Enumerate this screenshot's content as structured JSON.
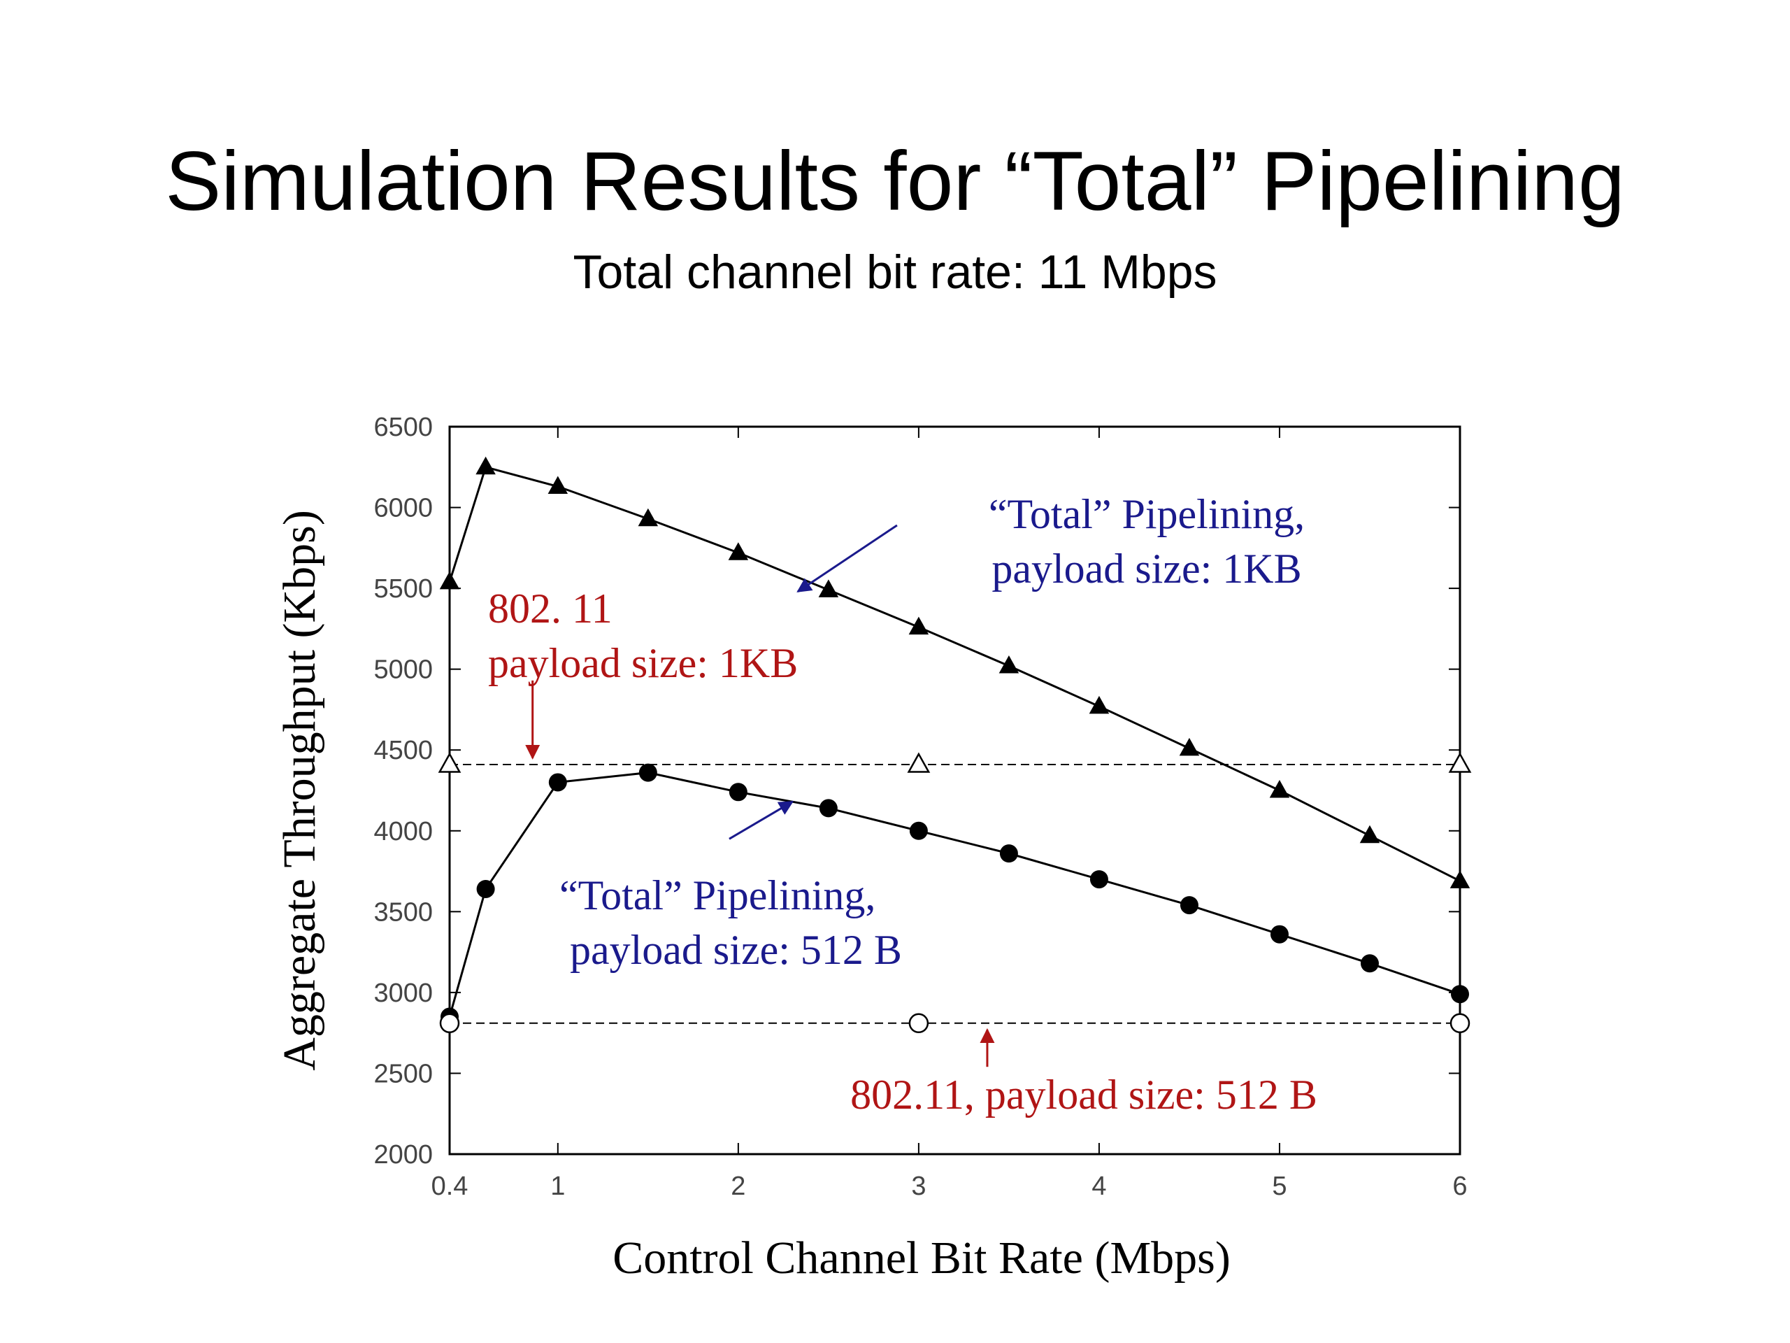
{
  "slide": {
    "title": "Simulation Results for “Total” Pipelining",
    "subtitle": "Total channel bit rate: 11 Mbps"
  },
  "chart_data": {
    "type": "line",
    "xlabel": "Control Channel Bit Rate (Mbps)",
    "ylabel": "Aggregate Throughput (Kbps)",
    "xlim": [
      0.4,
      6
    ],
    "ylim": [
      2000,
      6500
    ],
    "xticks": [
      0.4,
      1,
      2,
      3,
      4,
      5,
      6
    ],
    "xtick_labels": [
      "0.4",
      "1",
      "2",
      "3",
      "4",
      "5",
      "6"
    ],
    "yticks": [
      2000,
      2500,
      3000,
      3500,
      4000,
      4500,
      5000,
      5500,
      6000,
      6500
    ],
    "ytick_labels": [
      "2000",
      "2500",
      "3000",
      "3500",
      "4000",
      "4500",
      "5000",
      "5500",
      "6000",
      "6500"
    ],
    "grid": false,
    "series": [
      {
        "key": "pipe1kb",
        "marker": "triangle-filled",
        "line": "solid",
        "x": [
          0.4,
          0.6,
          1,
          1.5,
          2,
          2.5,
          3,
          3.5,
          4,
          4.5,
          5,
          5.5,
          6
        ],
        "y": [
          5540,
          6250,
          6130,
          5930,
          5720,
          5490,
          5260,
          5020,
          4770,
          4510,
          4250,
          3970,
          3690
        ]
      },
      {
        "key": "pipe512",
        "marker": "circle-filled",
        "line": "solid",
        "x": [
          0.4,
          0.6,
          1,
          1.5,
          2,
          2.5,
          3,
          3.5,
          4,
          4.5,
          5,
          5.5,
          6
        ],
        "y": [
          2850,
          3640,
          4300,
          4360,
          4240,
          4140,
          4000,
          3860,
          3700,
          3540,
          3360,
          3180,
          2990
        ]
      },
      {
        "key": "wifi1kb",
        "marker": "triangle-open",
        "line": "dashed",
        "x": [
          0.4,
          3,
          6
        ],
        "y": [
          4410,
          4410,
          4410
        ]
      },
      {
        "key": "wifi512",
        "marker": "circle-open",
        "line": "dashed",
        "x": [
          0.4,
          3,
          6
        ],
        "y": [
          2810,
          2810,
          2810
        ]
      }
    ],
    "annotations": [
      {
        "key": "ann_pipe1kb",
        "lines": [
          "“Total” Pipelining,",
          "payload size: 1KB"
        ],
        "color": "#1a1a8c",
        "arrow_from": [
          2.88,
          5890
        ],
        "arrow_to": [
          2.33,
          5480
        ]
      },
      {
        "key": "ann_wifi1kb",
        "lines": [
          "802. 11",
          "payload size: 1KB"
        ],
        "color": "#b01515",
        "arrow_from": [
          0.86,
          4930
        ],
        "arrow_to": [
          0.86,
          4450
        ]
      },
      {
        "key": "ann_pipe512",
        "lines": [
          "“Total” Pipelining,",
          " payload size: 512 B"
        ],
        "color": "#1a1a8c",
        "arrow_from": [
          1.95,
          3950
        ],
        "arrow_to": [
          2.3,
          4180
        ]
      },
      {
        "key": "ann_wifi512",
        "lines": [
          "802.11, payload size: 512 B"
        ],
        "color": "#b01515",
        "arrow_from": [
          3.38,
          2540
        ],
        "arrow_to": [
          3.38,
          2770
        ]
      }
    ]
  }
}
